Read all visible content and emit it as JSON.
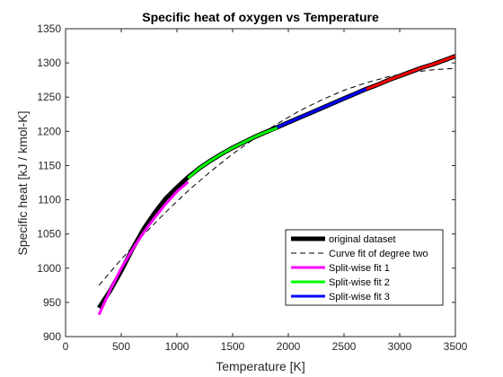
{
  "chart_data": {
    "type": "line",
    "title": "Specific heat of oxygen vs Temperature",
    "xlabel": "Temperature [K]",
    "ylabel": "Specific heat [kJ / kmol-K]",
    "xlim": [
      0,
      3500
    ],
    "ylim": [
      900,
      1350
    ],
    "xticks": [
      0,
      500,
      1000,
      1500,
      2000,
      2500,
      3000,
      3500
    ],
    "yticks": [
      900,
      950,
      1000,
      1050,
      1100,
      1150,
      1200,
      1250,
      1300,
      1350
    ],
    "grid": false,
    "legend_position": "bottom-right",
    "series": [
      {
        "name": "original dataset",
        "color": "#000000",
        "style": "solid-thick",
        "x": [
          300,
          400,
          500,
          600,
          700,
          800,
          900,
          1000,
          1100,
          1200,
          1300,
          1400,
          1500,
          1600,
          1700,
          1800,
          1900,
          2000,
          2100,
          2200,
          2300,
          2400,
          2500,
          2600,
          2700,
          2800,
          2900,
          3000,
          3100,
          3200,
          3300,
          3400,
          3500
        ],
        "y": [
          942,
          967,
          996,
          1028,
          1057,
          1081,
          1102,
          1118,
          1133,
          1146,
          1157,
          1167,
          1176,
          1184,
          1192,
          1199,
          1206,
          1213,
          1220,
          1227,
          1234,
          1241,
          1248,
          1255,
          1262,
          1268,
          1275,
          1281,
          1287,
          1293,
          1298,
          1304,
          1310
        ]
      },
      {
        "name": "Curve fit of degree two",
        "color": "#000000",
        "style": "dashed",
        "x": [
          300,
          500,
          700,
          900,
          1100,
          1300,
          1500,
          1700,
          1900,
          2100,
          2300,
          2500,
          2700,
          2900,
          3100,
          3300,
          3500
        ],
        "y": [
          975,
          1013,
          1049,
          1082,
          1113,
          1141,
          1167,
          1190,
          1211,
          1230,
          1246,
          1260,
          1271,
          1280,
          1286,
          1290,
          1292
        ]
      },
      {
        "name": "Split-wise fit 1",
        "color": "#ff00ff",
        "style": "solid",
        "x": [
          300,
          400,
          500,
          600,
          700,
          800,
          900,
          1000,
          1100
        ],
        "y": [
          932,
          968,
          1000,
          1027,
          1052,
          1074,
          1094,
          1112,
          1126
        ]
      },
      {
        "name": "Split-wise fit 2",
        "color": "#00ff00",
        "style": "solid",
        "x": [
          1100,
          1200,
          1300,
          1400,
          1500,
          1600,
          1700,
          1800,
          1900
        ],
        "y": [
          1132,
          1146,
          1157,
          1167,
          1176,
          1184,
          1192,
          1199,
          1205
        ]
      },
      {
        "name": "Split-wise fit 3",
        "color": "#0000ff",
        "style": "solid",
        "x": [
          1900,
          2000,
          2100,
          2200,
          2300,
          2400,
          2500,
          2600,
          2700
        ],
        "y": [
          1206,
          1213,
          1220,
          1227,
          1234,
          1241,
          1248,
          1255,
          1262
        ]
      },
      {
        "color": "#ff0000",
        "style": "solid",
        "x": [
          2700,
          2800,
          2900,
          3000,
          3100,
          3200,
          3300,
          3400,
          3500
        ],
        "y": [
          1262,
          1268,
          1275,
          1281,
          1287,
          1293,
          1298,
          1304,
          1310
        ]
      }
    ],
    "legend": [
      {
        "label": "original dataset",
        "color": "#000000",
        "style": "solid-thick"
      },
      {
        "label": "Curve fit of degree two",
        "color": "#000000",
        "style": "dashed"
      },
      {
        "label": "Split-wise fit 1",
        "color": "#ff00ff",
        "style": "solid"
      },
      {
        "label": "Split-wise fit 2",
        "color": "#00ff00",
        "style": "solid"
      },
      {
        "label": "Split-wise fit 3",
        "color": "#0000ff",
        "style": "solid"
      }
    ]
  }
}
